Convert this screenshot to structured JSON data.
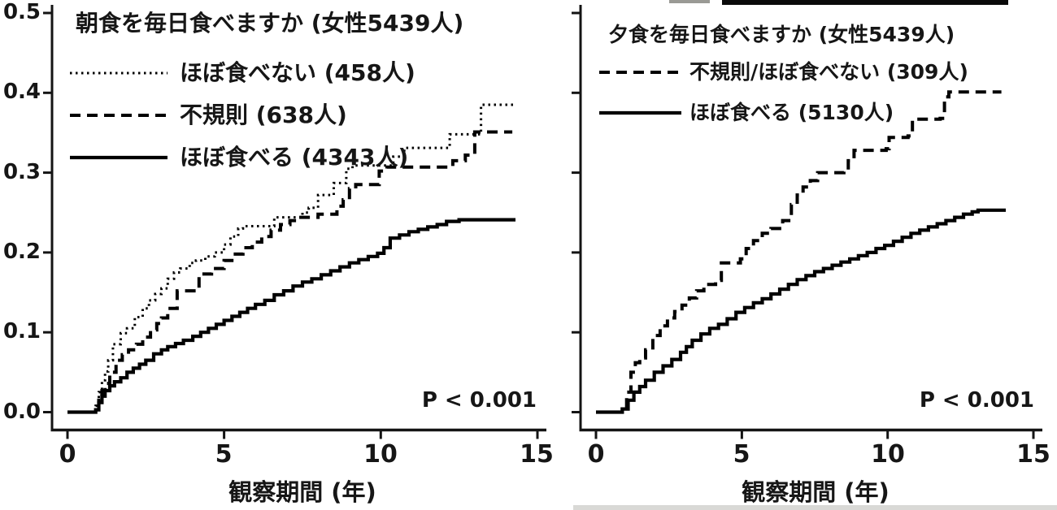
{
  "figure": {
    "panels": [
      {
        "title": "朝食を毎日食べますか (女性5439人)",
        "legend": [
          {
            "label": "ほぼ食べない (458人)",
            "style": "dotted"
          },
          {
            "label": "不規則 (638人)",
            "style": "dashed"
          },
          {
            "label": "ほぼ食べる (4343人)",
            "style": "solid"
          }
        ],
        "p_value": "P < 0.001",
        "x_axis_label": "観察期間 (年)",
        "x_ticks": [
          "0",
          "5",
          "10",
          "15"
        ],
        "y_ticks": [
          "0.0",
          "0.1",
          "0.2",
          "0.3",
          "0.4",
          "0.5"
        ]
      },
      {
        "title": "夕食を毎日食べますか (女性5439人)",
        "legend": [
          {
            "label": "不規則/ほぼ食べない (309人)",
            "style": "dashed"
          },
          {
            "label": "ほぼ食べる (5130人)",
            "style": "solid"
          }
        ],
        "p_value": "P < 0.001",
        "x_axis_label": "観察期間 (年)",
        "x_ticks": [
          "0",
          "5",
          "10",
          "15"
        ],
        "y_ticks": []
      }
    ]
  },
  "chart_data": [
    {
      "type": "line",
      "subtype": "step-cumulative-incidence",
      "title": "朝食を毎日食べますか (女性5439人)",
      "xlabel": "観察期間 (年)",
      "ylabel": "",
      "xlim": [
        0,
        15
      ],
      "ylim": [
        0,
        0.5
      ],
      "x_ticks": [
        0,
        5,
        10,
        15
      ],
      "y_ticks": [
        0.0,
        0.1,
        0.2,
        0.3,
        0.4,
        0.5
      ],
      "grid": false,
      "legend_position": "upper-left-inside",
      "annotation": "P < 0.001",
      "line_color": "#000000",
      "series": [
        {
          "name": "ほぼ食べない (458人)",
          "style": "dotted",
          "points": [
            [
              0,
              0
            ],
            [
              0.9,
              0.008
            ],
            [
              1.0,
              0.025
            ],
            [
              1.1,
              0.04
            ],
            [
              1.2,
              0.051
            ],
            [
              1.3,
              0.065
            ],
            [
              1.45,
              0.085
            ],
            [
              1.7,
              0.099
            ],
            [
              1.9,
              0.105
            ],
            [
              2.15,
              0.119
            ],
            [
              2.4,
              0.13
            ],
            [
              2.6,
              0.14
            ],
            [
              2.8,
              0.148
            ],
            [
              3.0,
              0.155
            ],
            [
              3.2,
              0.167
            ],
            [
              3.4,
              0.175
            ],
            [
              3.6,
              0.18
            ],
            [
              3.9,
              0.187
            ],
            [
              4.1,
              0.19
            ],
            [
              4.4,
              0.195
            ],
            [
              4.7,
              0.2
            ],
            [
              5.0,
              0.21
            ],
            [
              5.2,
              0.22
            ],
            [
              5.45,
              0.23
            ],
            [
              5.6,
              0.233
            ],
            [
              6.6,
              0.244
            ],
            [
              7.5,
              0.25
            ],
            [
              7.7,
              0.256
            ],
            [
              8.0,
              0.272
            ],
            [
              8.5,
              0.287
            ],
            [
              8.9,
              0.305
            ],
            [
              9.1,
              0.309
            ],
            [
              10.4,
              0.32
            ],
            [
              10.75,
              0.331
            ],
            [
              12.2,
              0.348
            ],
            [
              13.2,
              0.385
            ],
            [
              14.3,
              0.385
            ]
          ]
        },
        {
          "name": "不規則 (638人)",
          "style": "dashed",
          "points": [
            [
              0,
              0
            ],
            [
              0.9,
              0.005
            ],
            [
              1.0,
              0.015
            ],
            [
              1.1,
              0.027
            ],
            [
              1.2,
              0.036
            ],
            [
              1.35,
              0.05
            ],
            [
              1.55,
              0.065
            ],
            [
              1.75,
              0.072
            ],
            [
              1.95,
              0.078
            ],
            [
              2.2,
              0.085
            ],
            [
              2.4,
              0.094
            ],
            [
              2.65,
              0.103
            ],
            [
              2.85,
              0.111
            ],
            [
              3.0,
              0.118
            ],
            [
              3.2,
              0.13
            ],
            [
              3.5,
              0.152
            ],
            [
              4.2,
              0.173
            ],
            [
              4.6,
              0.18
            ],
            [
              5.0,
              0.19
            ],
            [
              5.3,
              0.198
            ],
            [
              5.6,
              0.206
            ],
            [
              5.9,
              0.213
            ],
            [
              6.2,
              0.22
            ],
            [
              6.5,
              0.228
            ],
            [
              6.8,
              0.235
            ],
            [
              7.1,
              0.24
            ],
            [
              7.4,
              0.244
            ],
            [
              8.0,
              0.248
            ],
            [
              8.6,
              0.258
            ],
            [
              8.8,
              0.266
            ],
            [
              9.0,
              0.28
            ],
            [
              9.2,
              0.285
            ],
            [
              9.95,
              0.302
            ],
            [
              10.2,
              0.307
            ],
            [
              12.3,
              0.315
            ],
            [
              12.7,
              0.322
            ],
            [
              13.0,
              0.351
            ],
            [
              14.2,
              0.351
            ]
          ]
        },
        {
          "name": "ほぼ食べる (4343人)",
          "style": "solid",
          "points": [
            [
              0,
              0
            ],
            [
              0.9,
              0.003
            ],
            [
              1.0,
              0.012
            ],
            [
              1.1,
              0.02
            ],
            [
              1.2,
              0.027
            ],
            [
              1.35,
              0.033
            ],
            [
              1.5,
              0.038
            ],
            [
              1.7,
              0.043
            ],
            [
              1.9,
              0.05
            ],
            [
              2.1,
              0.055
            ],
            [
              2.3,
              0.06
            ],
            [
              2.5,
              0.065
            ],
            [
              2.75,
              0.073
            ],
            [
              3.0,
              0.078
            ],
            [
              3.2,
              0.082
            ],
            [
              3.45,
              0.086
            ],
            [
              3.7,
              0.09
            ],
            [
              4.0,
              0.095
            ],
            [
              4.25,
              0.1
            ],
            [
              4.5,
              0.105
            ],
            [
              4.75,
              0.11
            ],
            [
              5.0,
              0.115
            ],
            [
              5.25,
              0.12
            ],
            [
              5.5,
              0.125
            ],
            [
              5.75,
              0.13
            ],
            [
              6.0,
              0.135
            ],
            [
              6.3,
              0.14
            ],
            [
              6.6,
              0.147
            ],
            [
              6.9,
              0.152
            ],
            [
              7.2,
              0.158
            ],
            [
              7.5,
              0.163
            ],
            [
              7.8,
              0.167
            ],
            [
              8.1,
              0.172
            ],
            [
              8.4,
              0.177
            ],
            [
              8.7,
              0.182
            ],
            [
              9.0,
              0.187
            ],
            [
              9.3,
              0.191
            ],
            [
              9.6,
              0.195
            ],
            [
              9.9,
              0.199
            ],
            [
              10.1,
              0.206
            ],
            [
              10.3,
              0.218
            ],
            [
              10.6,
              0.222
            ],
            [
              10.9,
              0.226
            ],
            [
              11.2,
              0.229
            ],
            [
              11.5,
              0.232
            ],
            [
              11.8,
              0.235
            ],
            [
              12.1,
              0.239
            ],
            [
              12.5,
              0.241
            ],
            [
              14.3,
              0.241
            ]
          ]
        }
      ]
    },
    {
      "type": "line",
      "subtype": "step-cumulative-incidence",
      "title": "夕食を毎日食べますか (女性5439人)",
      "xlabel": "観察期間 (年)",
      "ylabel": "",
      "xlim": [
        0,
        15
      ],
      "ylim": [
        0,
        0.5
      ],
      "x_ticks": [
        0,
        5,
        10,
        15
      ],
      "y_ticks": [
        0.0,
        0.1,
        0.2,
        0.3,
        0.4,
        0.5
      ],
      "grid": false,
      "legend_position": "upper-left-inside",
      "annotation": "P < 0.001",
      "line_color": "#000000",
      "series": [
        {
          "name": "不規則/ほぼ食べない (309人)",
          "style": "dashed",
          "points": [
            [
              0,
              0
            ],
            [
              0.9,
              0.006
            ],
            [
              1.05,
              0.025
            ],
            [
              1.2,
              0.05
            ],
            [
              1.35,
              0.062
            ],
            [
              1.5,
              0.068
            ],
            [
              1.7,
              0.078
            ],
            [
              1.95,
              0.096
            ],
            [
              2.2,
              0.108
            ],
            [
              2.45,
              0.118
            ],
            [
              2.7,
              0.126
            ],
            [
              2.95,
              0.134
            ],
            [
              3.2,
              0.143
            ],
            [
              3.45,
              0.152
            ],
            [
              3.7,
              0.16
            ],
            [
              4.1,
              0.165
            ],
            [
              4.3,
              0.187
            ],
            [
              4.95,
              0.192
            ],
            [
              5.15,
              0.205
            ],
            [
              5.4,
              0.215
            ],
            [
              5.7,
              0.224
            ],
            [
              6.0,
              0.23
            ],
            [
              6.4,
              0.24
            ],
            [
              6.7,
              0.26
            ],
            [
              6.9,
              0.272
            ],
            [
              7.1,
              0.282
            ],
            [
              7.35,
              0.29
            ],
            [
              7.6,
              0.3
            ],
            [
              8.5,
              0.302
            ],
            [
              8.65,
              0.315
            ],
            [
              8.85,
              0.328
            ],
            [
              9.95,
              0.33
            ],
            [
              10.05,
              0.344
            ],
            [
              10.7,
              0.346
            ],
            [
              10.85,
              0.367
            ],
            [
              11.8,
              0.368
            ],
            [
              11.95,
              0.395
            ],
            [
              12.1,
              0.401
            ],
            [
              13.9,
              0.401
            ]
          ]
        },
        {
          "name": "ほぼ食べる (5130人)",
          "style": "solid",
          "points": [
            [
              0,
              0
            ],
            [
              0.9,
              0.004
            ],
            [
              1.1,
              0.015
            ],
            [
              1.3,
              0.025
            ],
            [
              1.5,
              0.032
            ],
            [
              1.7,
              0.04
            ],
            [
              2.0,
              0.05
            ],
            [
              2.3,
              0.058
            ],
            [
              2.6,
              0.066
            ],
            [
              2.9,
              0.075
            ],
            [
              3.1,
              0.082
            ],
            [
              3.3,
              0.09
            ],
            [
              3.6,
              0.098
            ],
            [
              3.9,
              0.105
            ],
            [
              4.2,
              0.11
            ],
            [
              4.5,
              0.117
            ],
            [
              4.8,
              0.125
            ],
            [
              5.1,
              0.131
            ],
            [
              5.4,
              0.137
            ],
            [
              5.7,
              0.142
            ],
            [
              6.0,
              0.148
            ],
            [
              6.3,
              0.154
            ],
            [
              6.6,
              0.16
            ],
            [
              6.9,
              0.166
            ],
            [
              7.2,
              0.171
            ],
            [
              7.5,
              0.176
            ],
            [
              7.8,
              0.18
            ],
            [
              8.1,
              0.184
            ],
            [
              8.4,
              0.188
            ],
            [
              8.7,
              0.192
            ],
            [
              9.0,
              0.196
            ],
            [
              9.3,
              0.2
            ],
            [
              9.6,
              0.205
            ],
            [
              9.9,
              0.209
            ],
            [
              10.2,
              0.214
            ],
            [
              10.5,
              0.219
            ],
            [
              10.8,
              0.224
            ],
            [
              11.1,
              0.228
            ],
            [
              11.4,
              0.232
            ],
            [
              11.7,
              0.236
            ],
            [
              12.0,
              0.24
            ],
            [
              12.3,
              0.244
            ],
            [
              12.6,
              0.248
            ],
            [
              12.9,
              0.251
            ],
            [
              13.1,
              0.253
            ],
            [
              14.05,
              0.253
            ]
          ]
        }
      ]
    }
  ]
}
